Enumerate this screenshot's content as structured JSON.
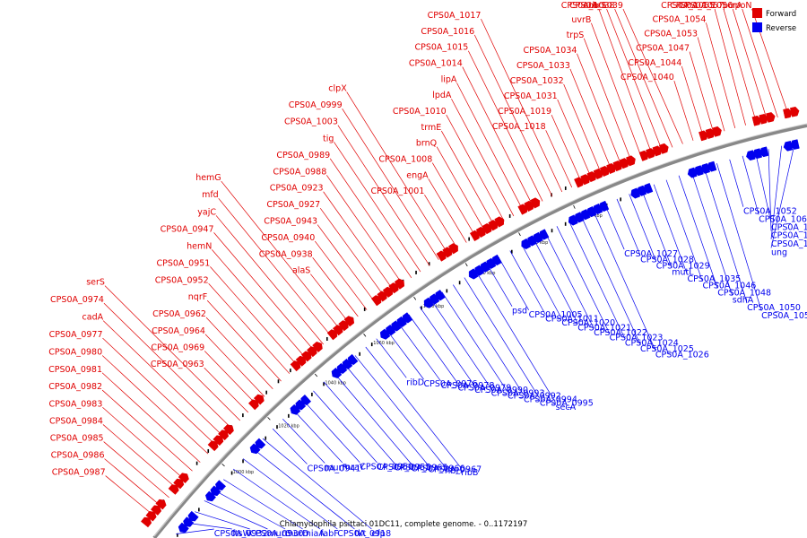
{
  "legend": [
    {
      "label": "Forward",
      "color": "#e00000"
    },
    {
      "label": "Reverse",
      "color": "#0000ee"
    }
  ],
  "caption": "Chlamydophila psittaci 01DC11, complete genome. - 0..1172197",
  "ticks": [
    {
      "label": "1000 kbp",
      "pos": 1000
    },
    {
      "label": "1020 kbp",
      "pos": 1020
    },
    {
      "label": "1040 kbp",
      "pos": 1040
    },
    {
      "label": "1060 kbp",
      "pos": 1060
    },
    {
      "label": "1080 kbp",
      "pos": 1080
    },
    {
      "label": "1100 kbp",
      "pos": 1100
    },
    {
      "label": "1120 kbp",
      "pos": 1120
    },
    {
      "label": "1140 kbp",
      "pos": 1140
    }
  ],
  "forward_labels": [
    "CPS0A_0987",
    "CPS0A_0986",
    "CPS0A_0985",
    "CPS0A_0984",
    "CPS0A_0983",
    "CPS0A_0982",
    "CPS0A_0981",
    "CPS0A_0980",
    "CPS0A_0977",
    "cadA",
    "CPS0A_0974",
    "serS",
    "CPS0A_0963",
    "CPS0A_0969",
    "CPS0A_0964",
    "CPS0A_0962",
    "nqrF",
    "CPS0A_0952",
    "CPS0A_0951",
    "hemN",
    "CPS0A_0947",
    "yajC",
    "mfd",
    "hemG",
    "alaS",
    "CPS0A_0938",
    "CPS0A_0940",
    "CPS0A_0943",
    "CPS0A_0927",
    "CPS0A_0923",
    "CPS0A_0988",
    "CPS0A_0989",
    "tig",
    "CPS0A_1003",
    "CPS0A_0999",
    "clpX",
    "CPS0A_1001",
    "engA",
    "CPS0A_1008",
    "brnQ",
    "trmE",
    "CPS0A_1010",
    "lpdA",
    "lipA",
    "CPS0A_1014",
    "CPS0A_1015",
    "CPS0A_1016",
    "CPS0A_1017",
    "CPS0A_1018",
    "CPS0A_1019",
    "CPS0A_1031",
    "CPS0A_1032",
    "CPS0A_1033",
    "CPS0A_1034",
    "trpS",
    "uvrB",
    "eno",
    "thrS",
    "CPS0A_1038",
    "CPS0A_1039",
    "CPS0A_1040",
    "CPS0A_1044",
    "CPS0A_1047",
    "CPS0A_1053",
    "CPS0A_1054",
    "CPS0A_1055",
    "CPS0A_1057",
    "CPS0A_1056",
    "pcrA",
    "rpoN"
  ],
  "reverse_labels": [
    "CPS0A_0932",
    "ftsW",
    "CPS0A_0930",
    "murC",
    "murD",
    "miaA",
    "fabF",
    "CPS0A_0918",
    "tkt",
    "efp",
    "CPS0A_0941",
    "murF",
    "mraY",
    "CPS0A_0950",
    "CPS0A_0955",
    "CPS0A_0965",
    "CPS0A_0966",
    "CPS0A_0967",
    "ribH",
    "ribB",
    "ribD",
    "CPS0A_0976",
    "CPS0A_0978",
    "CPS0A_0979",
    "CPS0A_0990",
    "CPS0A_0993",
    "CPS0A_0992",
    "CPS0A_0994",
    "CPS0A_0995",
    "secA",
    "psd",
    "CPS0A_1005",
    "CPS0A_1011",
    "CPS0A_1020",
    "CPS0A_1021",
    "CPS0A_1022",
    "CPS0A_1023",
    "CPS0A_1024",
    "CPS0A_1025",
    "CPS0A_1026",
    "CPS0A_1027",
    "CPS0A_1028",
    "CPS0A_1029",
    "mutL",
    "CPS0A_1035",
    "CPS0A_1046",
    "CPS0A_1048",
    "sdhA",
    "CPS0A_1050",
    "CPS0A_1051",
    "CPS0A_1052",
    "CPS0A_1060",
    "CPS0A_1062",
    "CPS0A_1063",
    "CPS0A_1065",
    "ung"
  ]
}
